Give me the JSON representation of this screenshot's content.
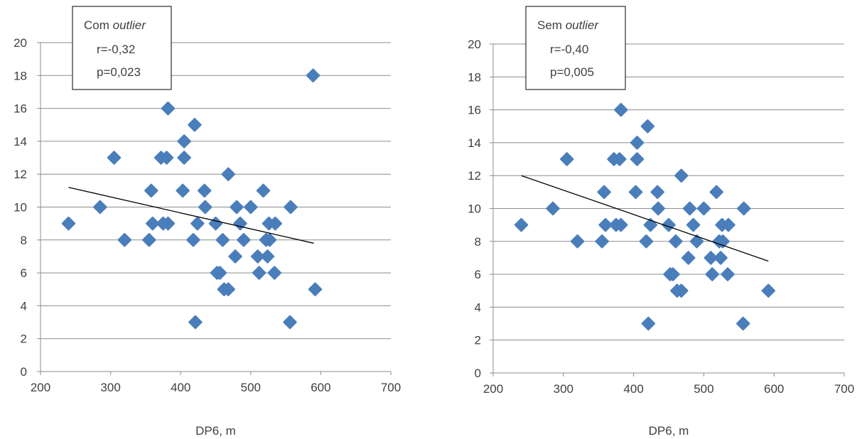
{
  "chart_data": [
    {
      "type": "scatter",
      "xlabel": "DP6, m",
      "ylabel": "",
      "xlim": [
        200,
        700
      ],
      "ylim": [
        0,
        20
      ],
      "x_ticks": [
        "200",
        "300",
        "400",
        "500",
        "600",
        "700"
      ],
      "y_ticks": [
        "0",
        "2",
        "4",
        "6",
        "8",
        "10",
        "12",
        "14",
        "16",
        "18",
        "20"
      ],
      "grid": "horizontal",
      "legend": "",
      "annotation": {
        "title_prefix": "Com ",
        "title_italic": "outlier",
        "r": "r=-0,32",
        "p": "p=0,023"
      },
      "color": "#4a7ebb",
      "trendline": {
        "x": [
          240,
          590
        ],
        "y": [
          11.2,
          7.8
        ]
      },
      "points": {
        "x": [
          240,
          285,
          305,
          320,
          355,
          358,
          360,
          372,
          375,
          380,
          382,
          382,
          403,
          405,
          405,
          418,
          420,
          421,
          424,
          434,
          435,
          450,
          452,
          456,
          460,
          462,
          468,
          468,
          478,
          480,
          485,
          490,
          500,
          510,
          512,
          518,
          522,
          524,
          526,
          527,
          534,
          535,
          557,
          556,
          589,
          592
        ],
        "y": [
          9,
          10,
          13,
          8,
          8,
          11,
          9,
          13,
          9,
          13,
          9,
          16,
          11,
          14,
          13,
          8,
          15,
          3,
          9,
          11,
          10,
          9,
          6,
          6,
          8,
          5,
          5,
          12,
          7,
          10,
          9,
          8,
          10,
          7,
          6,
          11,
          8,
          7,
          9,
          8,
          6,
          9,
          10,
          3,
          18,
          5
        ]
      }
    },
    {
      "type": "scatter",
      "xlabel": "DP6, m",
      "ylabel": "",
      "xlim": [
        200,
        700
      ],
      "ylim": [
        0,
        20
      ],
      "x_ticks": [
        "200",
        "300",
        "400",
        "500",
        "600",
        "700"
      ],
      "y_ticks": [
        "0",
        "2",
        "4",
        "6",
        "8",
        "10",
        "12",
        "14",
        "16",
        "18",
        "20"
      ],
      "grid": "horizontal",
      "legend": "",
      "annotation": {
        "title_prefix": "Sem ",
        "title_italic": "outlier",
        "r": "r=-0,40",
        "p": "p=0,005"
      },
      "color": "#4a7ebb",
      "trendline": {
        "x": [
          240,
          592
        ],
        "y": [
          12.0,
          6.8
        ]
      },
      "points": {
        "x": [
          240,
          285,
          305,
          320,
          355,
          358,
          360,
          372,
          375,
          380,
          382,
          382,
          403,
          405,
          405,
          418,
          420,
          421,
          424,
          434,
          435,
          450,
          452,
          456,
          460,
          462,
          468,
          468,
          478,
          480,
          485,
          490,
          500,
          510,
          512,
          518,
          522,
          524,
          526,
          527,
          534,
          535,
          557,
          556,
          592
        ],
        "y": [
          9,
          10,
          13,
          8,
          8,
          11,
          9,
          13,
          9,
          13,
          9,
          16,
          11,
          14,
          13,
          8,
          15,
          3,
          9,
          11,
          10,
          9,
          6,
          6,
          8,
          5,
          5,
          12,
          7,
          10,
          9,
          8,
          10,
          7,
          6,
          11,
          8,
          7,
          9,
          8,
          6,
          9,
          10,
          3,
          5
        ]
      }
    }
  ]
}
